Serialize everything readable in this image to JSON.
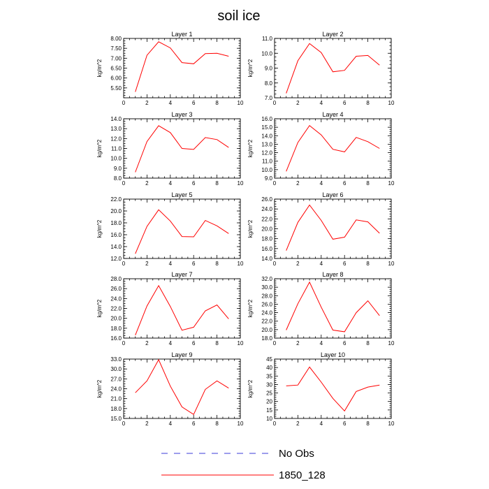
{
  "figure": {
    "title": "soil ice",
    "legend": [
      {
        "label": "No Obs",
        "color": "#3b3bd8",
        "style": "dashed"
      },
      {
        "label": "1850_128",
        "color": "#ff0000",
        "style": "solid"
      }
    ]
  },
  "chart_data": [
    {
      "type": "line",
      "title": "Layer 1",
      "ylabel": "kg/m^2",
      "xlim": [
        0,
        10
      ],
      "ylim": [
        5.0,
        8.0
      ],
      "xticks": [
        "0",
        "2",
        "4",
        "6",
        "8",
        "10"
      ],
      "yticks": [
        "5.50",
        "6.00",
        "6.50",
        "7.00",
        "7.50",
        "8.00"
      ],
      "series": [
        {
          "name": "1850_128",
          "color": "#ff0000",
          "x": [
            1,
            2,
            3,
            4,
            5,
            6,
            7,
            8,
            9
          ],
          "values": [
            5.3,
            7.15,
            7.83,
            7.52,
            6.78,
            6.72,
            7.23,
            7.25,
            7.1
          ]
        }
      ]
    },
    {
      "type": "line",
      "title": "Layer 2",
      "ylabel": "kg/m^2",
      "xlim": [
        0,
        10
      ],
      "ylim": [
        7.0,
        11.0
      ],
      "xticks": [
        "0",
        "2",
        "4",
        "6",
        "8",
        "10"
      ],
      "yticks": [
        "7.0",
        "8.0",
        "9.0",
        "10.0",
        "11.0"
      ],
      "series": [
        {
          "name": "1850_128",
          "color": "#ff0000",
          "x": [
            1,
            2,
            3,
            4,
            5,
            6,
            7,
            8,
            9
          ],
          "values": [
            7.3,
            9.5,
            10.65,
            10.05,
            8.75,
            8.85,
            9.8,
            9.85,
            9.2
          ]
        }
      ]
    },
    {
      "type": "line",
      "title": "Layer 3",
      "ylabel": "kg/m^2",
      "xlim": [
        0,
        10
      ],
      "ylim": [
        8.0,
        14.0
      ],
      "xticks": [
        "0",
        "2",
        "4",
        "6",
        "8",
        "10"
      ],
      "yticks": [
        "8.0",
        "9.0",
        "10.0",
        "11.0",
        "12.0",
        "13.0",
        "14.0"
      ],
      "series": [
        {
          "name": "1850_128",
          "color": "#ff0000",
          "x": [
            1,
            2,
            3,
            4,
            5,
            6,
            7,
            8,
            9
          ],
          "values": [
            8.6,
            11.7,
            13.3,
            12.6,
            11.0,
            10.9,
            12.1,
            11.9,
            11.1
          ]
        }
      ]
    },
    {
      "type": "line",
      "title": "Layer 4",
      "ylabel": "kg/m^2",
      "xlim": [
        0,
        10
      ],
      "ylim": [
        9.0,
        16.0
      ],
      "xticks": [
        "0",
        "2",
        "4",
        "6",
        "8",
        "10"
      ],
      "yticks": [
        "9.0",
        "10.0",
        "11.0",
        "12.0",
        "13.0",
        "14.0",
        "15.0",
        "16.0"
      ],
      "series": [
        {
          "name": "1850_128",
          "color": "#ff0000",
          "x": [
            1,
            2,
            3,
            4,
            5,
            6,
            7,
            8,
            9
          ],
          "values": [
            9.8,
            13.2,
            15.2,
            14.1,
            12.4,
            12.1,
            13.8,
            13.3,
            12.5
          ]
        }
      ]
    },
    {
      "type": "line",
      "title": "Layer 5",
      "ylabel": "kg/m^2",
      "xlim": [
        0,
        10
      ],
      "ylim": [
        12.0,
        22.0
      ],
      "xticks": [
        "0",
        "2",
        "4",
        "6",
        "8",
        "10"
      ],
      "yticks": [
        "12.0",
        "14.0",
        "16.0",
        "18.0",
        "20.0",
        "22.0"
      ],
      "series": [
        {
          "name": "1850_128",
          "color": "#ff0000",
          "x": [
            1,
            2,
            3,
            4,
            5,
            6,
            7,
            8,
            9
          ],
          "values": [
            12.8,
            17.4,
            20.2,
            18.3,
            15.7,
            15.65,
            18.4,
            17.5,
            16.2
          ]
        }
      ]
    },
    {
      "type": "line",
      "title": "Layer 6",
      "ylabel": "kg/m^2",
      "xlim": [
        0,
        10
      ],
      "ylim": [
        14.0,
        26.0
      ],
      "xticks": [
        "0",
        "2",
        "4",
        "6",
        "8",
        "10"
      ],
      "yticks": [
        "14.0",
        "16.0",
        "18.0",
        "20.0",
        "22.0",
        "24.0",
        "26.0"
      ],
      "series": [
        {
          "name": "1850_128",
          "color": "#ff0000",
          "x": [
            1,
            2,
            3,
            4,
            5,
            6,
            7,
            8,
            9
          ],
          "values": [
            15.6,
            21.3,
            24.8,
            21.7,
            17.9,
            18.3,
            21.8,
            21.4,
            19.1
          ]
        }
      ]
    },
    {
      "type": "line",
      "title": "Layer 7",
      "ylabel": "kg/m^2",
      "xlim": [
        0,
        10
      ],
      "ylim": [
        16.0,
        28.0
      ],
      "xticks": [
        "0",
        "2",
        "4",
        "6",
        "8",
        "10"
      ],
      "yticks": [
        "16.0",
        "18.0",
        "20.0",
        "22.0",
        "24.0",
        "26.0",
        "28.0"
      ],
      "series": [
        {
          "name": "1850_128",
          "color": "#ff0000",
          "x": [
            1,
            2,
            3,
            4,
            5,
            6,
            7,
            8,
            9
          ],
          "values": [
            16.6,
            22.5,
            26.6,
            22.4,
            17.6,
            18.2,
            21.5,
            22.7,
            19.9
          ]
        }
      ]
    },
    {
      "type": "line",
      "title": "Layer 8",
      "ylabel": "kg/m^2",
      "xlim": [
        0,
        10
      ],
      "ylim": [
        18.0,
        32.0
      ],
      "xticks": [
        "0",
        "2",
        "4",
        "6",
        "8",
        "10"
      ],
      "yticks": [
        "18.0",
        "20.0",
        "22.0",
        "24.0",
        "26.0",
        "28.0",
        "30.0",
        "32.0"
      ],
      "series": [
        {
          "name": "1850_128",
          "color": "#ff0000",
          "x": [
            1,
            2,
            3,
            4,
            5,
            6,
            7,
            8,
            9
          ],
          "values": [
            19.9,
            26.1,
            31.2,
            25.3,
            19.9,
            19.5,
            24.0,
            26.8,
            23.3
          ]
        }
      ]
    },
    {
      "type": "line",
      "title": "Layer 9",
      "ylabel": "kg/m^2",
      "xlim": [
        0,
        10
      ],
      "ylim": [
        15.0,
        33.0
      ],
      "xticks": [
        "0",
        "2",
        "4",
        "6",
        "8",
        "10"
      ],
      "yticks": [
        "15.0",
        "18.0",
        "21.0",
        "24.0",
        "27.0",
        "30.0",
        "33.0"
      ],
      "series": [
        {
          "name": "1850_128",
          "color": "#ff0000",
          "x": [
            1,
            2,
            3,
            4,
            5,
            6,
            7,
            8,
            9
          ],
          "values": [
            22.8,
            26.4,
            32.8,
            24.8,
            18.5,
            16.2,
            23.8,
            26.4,
            24.2
          ]
        }
      ]
    },
    {
      "type": "line",
      "title": "Layer 10",
      "ylabel": "kg/m^2",
      "xlim": [
        0,
        10
      ],
      "ylim": [
        10,
        45
      ],
      "xticks": [
        "0",
        "2",
        "4",
        "6",
        "8",
        "10"
      ],
      "yticks": [
        "10",
        "15",
        "20",
        "25",
        "30",
        "35",
        "40",
        "45"
      ],
      "series": [
        {
          "name": "1850_128",
          "color": "#ff0000",
          "x": [
            1,
            2,
            3,
            4,
            5,
            6,
            7,
            8,
            9
          ],
          "values": [
            29.2,
            29.7,
            40.3,
            31.4,
            21.8,
            14.4,
            25.9,
            28.5,
            29.7
          ]
        }
      ]
    }
  ]
}
